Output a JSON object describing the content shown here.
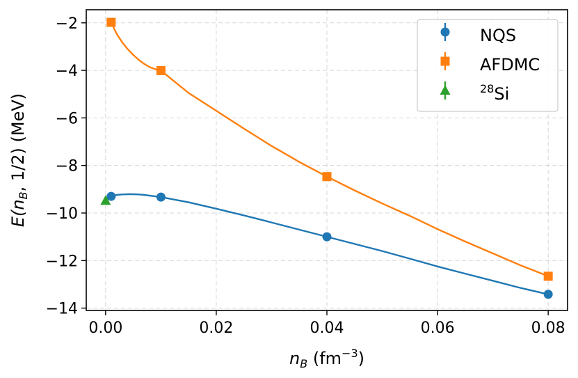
{
  "chart_data": {
    "type": "line",
    "title": "",
    "xlabel": {
      "base": "n",
      "sub": "B",
      "rest": " (fm",
      "sup": "−3",
      "close": ")"
    },
    "ylabel": {
      "pre": "E(n",
      "sub": "B",
      "post": ", 1/2) (MeV)"
    },
    "xlim": [
      -0.0035,
      0.0835
    ],
    "ylim": [
      -14.1,
      -1.45
    ],
    "xticks": [
      0.0,
      0.02,
      0.04,
      0.06,
      0.08
    ],
    "xtick_labels": [
      "0.00",
      "0.02",
      "0.04",
      "0.06",
      "0.08"
    ],
    "yticks": [
      -14,
      -12,
      -10,
      -8,
      -6,
      -4,
      -2
    ],
    "ytick_labels": [
      "−14",
      "−12",
      "−10",
      "−8",
      "−6",
      "−4",
      "−2"
    ],
    "grid": true,
    "legend_position": "top-right",
    "series": [
      {
        "name": "NQS",
        "legend_label": "NQS",
        "color": "#1f77b4",
        "marker": "circle",
        "x": [
          0.001,
          0.01,
          0.04,
          0.08
        ],
        "y": [
          -9.3,
          -9.33,
          -11.0,
          -13.42
        ],
        "curve_x": [
          0.001,
          0.002,
          0.003,
          0.004,
          0.005,
          0.006,
          0.007,
          0.008,
          0.009,
          0.01,
          0.015,
          0.02,
          0.025,
          0.03,
          0.035,
          0.04,
          0.045,
          0.05,
          0.055,
          0.06,
          0.065,
          0.07,
          0.075,
          0.08
        ],
        "curve_y": [
          -9.3,
          -9.24,
          -9.22,
          -9.21,
          -9.21,
          -9.22,
          -9.24,
          -9.27,
          -9.3,
          -9.33,
          -9.55,
          -9.82,
          -10.1,
          -10.4,
          -10.7,
          -11.0,
          -11.3,
          -11.6,
          -11.92,
          -12.25,
          -12.55,
          -12.85,
          -13.15,
          -13.42
        ]
      },
      {
        "name": "AFDMC",
        "legend_label": "AFDMC",
        "color": "#ff7f0e",
        "marker": "square",
        "x": [
          0.001,
          0.01,
          0.04,
          0.08
        ],
        "y": [
          -1.98,
          -4.01,
          -8.47,
          -12.66
        ],
        "curve_x": [
          0.001,
          0.002,
          0.003,
          0.004,
          0.005,
          0.006,
          0.007,
          0.008,
          0.009,
          0.01,
          0.015,
          0.02,
          0.025,
          0.03,
          0.035,
          0.04,
          0.045,
          0.05,
          0.055,
          0.06,
          0.065,
          0.07,
          0.075,
          0.08
        ],
        "curve_y": [
          -1.98,
          -2.46,
          -2.82,
          -3.11,
          -3.35,
          -3.56,
          -3.73,
          -3.87,
          -3.95,
          -4.01,
          -4.95,
          -5.7,
          -6.45,
          -7.18,
          -7.85,
          -8.47,
          -9.05,
          -9.6,
          -10.12,
          -10.68,
          -11.2,
          -11.7,
          -12.2,
          -12.66
        ]
      },
      {
        "name": "28Si",
        "legend_label": "Si",
        "legend_sup": "28",
        "color": "#2ca02c",
        "marker": "triangle",
        "x": [
          0.0
        ],
        "y": [
          -9.48
        ]
      }
    ]
  }
}
